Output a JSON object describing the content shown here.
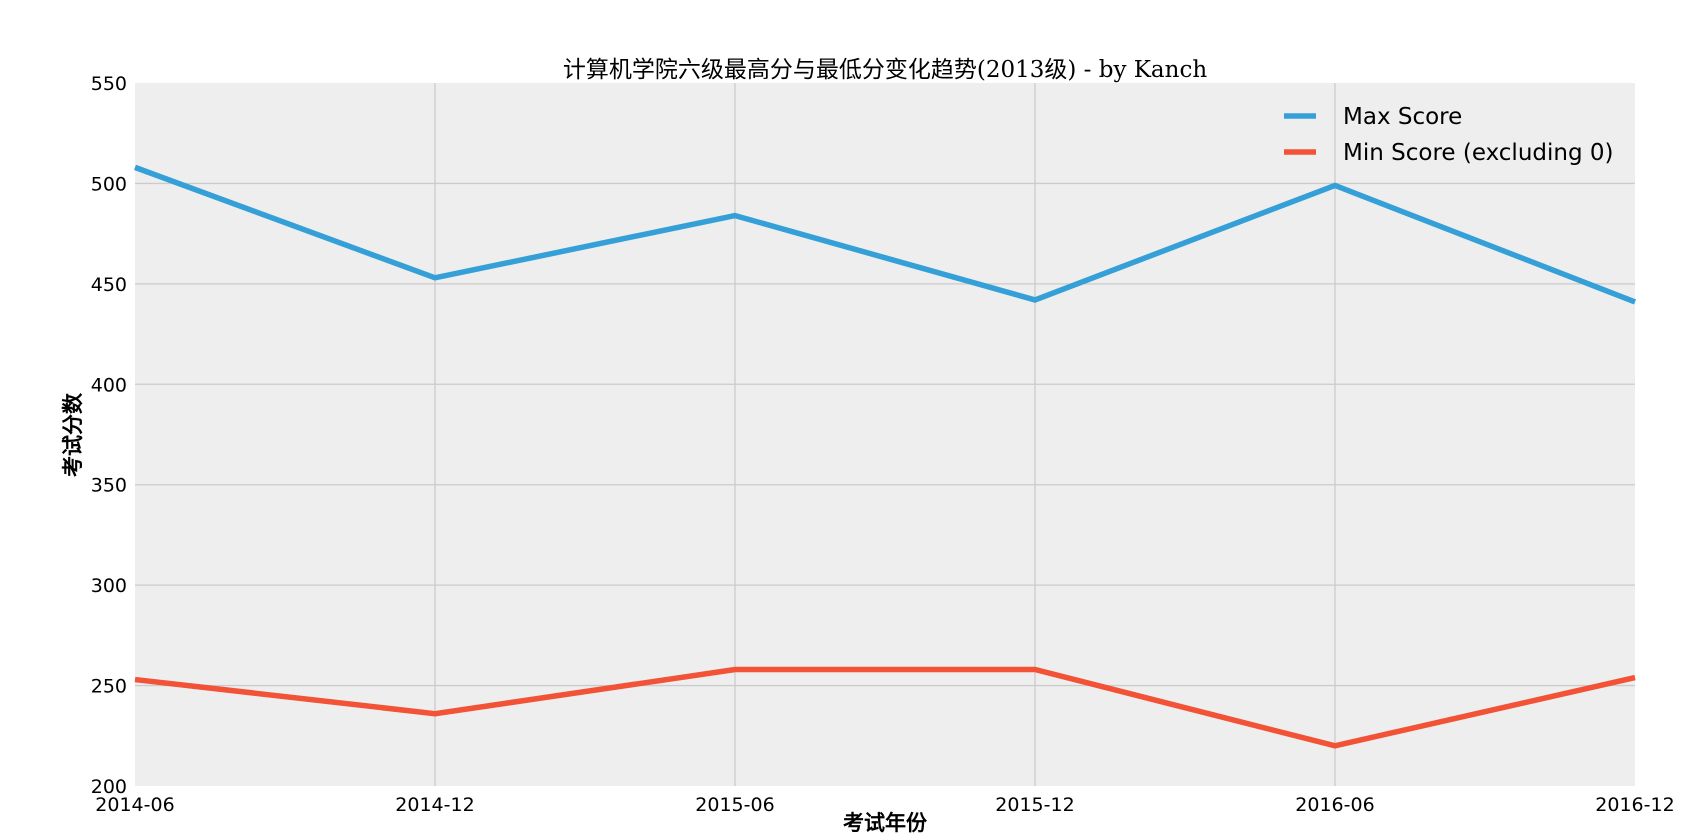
{
  "colors": {
    "plot_background": "#eeeeee",
    "max_series": "#35a0d8",
    "min_series": "#f25235",
    "grid": "#cbcbcb"
  },
  "chart_data": {
    "type": "line",
    "title": "计算机学院六级最高分与最低分变化趋势(2013级) - by Kanch",
    "xlabel": "考试年份",
    "ylabel": "考试分数",
    "categories": [
      "2014-06",
      "2014-12",
      "2015-06",
      "2015-12",
      "2016-06",
      "2016-12"
    ],
    "ylim": [
      200,
      550
    ],
    "yticks": [
      200,
      250,
      300,
      350,
      400,
      450,
      500,
      550
    ],
    "grid": true,
    "legend_position": "top-right",
    "series": [
      {
        "name": "Max Score",
        "color": "#35a0d8",
        "values": [
          508,
          453,
          484,
          442,
          499,
          441
        ]
      },
      {
        "name": "Min Score (excluding 0)",
        "color": "#f25235",
        "values": [
          253,
          236,
          258,
          258,
          220,
          254
        ]
      }
    ]
  }
}
